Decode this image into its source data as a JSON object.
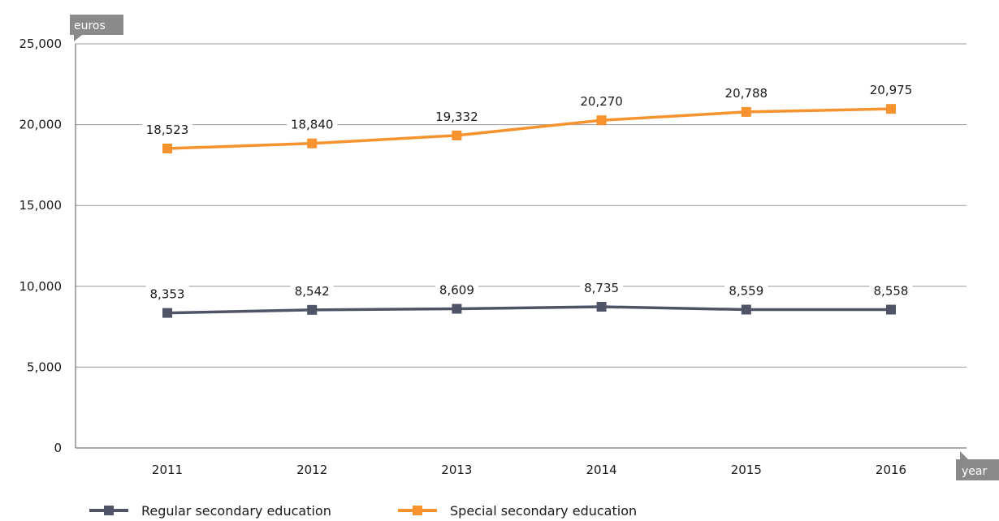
{
  "chart_data": {
    "type": "line",
    "x": [
      "2011",
      "2012",
      "2013",
      "2014",
      "2015",
      "2016"
    ],
    "ylabel": "euros",
    "xlabel": "year",
    "ylim": [
      0,
      25000
    ],
    "yticks": [
      "0",
      "5,000",
      "10,000",
      "15,000",
      "20,000",
      "25,000"
    ],
    "grid": true,
    "legend_position": "bottom",
    "series": [
      {
        "name": "Regular secondary education",
        "color": "#4f5466",
        "values": [
          8353,
          8542,
          8609,
          8735,
          8559,
          8558
        ],
        "labels": [
          "8,353",
          "8,542",
          "8,609",
          "8,735",
          "8,559",
          "8,558"
        ]
      },
      {
        "name": "Special secondary education",
        "color": "#f7922e",
        "values": [
          18523,
          18840,
          19332,
          20270,
          20788,
          20975
        ],
        "labels": [
          "18,523",
          "18,840",
          "19,332",
          "20,270",
          "20,788",
          "20,975"
        ]
      }
    ]
  }
}
